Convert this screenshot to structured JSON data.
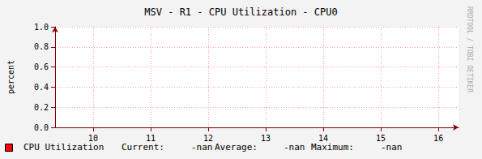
{
  "chart_data": {
    "type": "line",
    "title": "MSV - R1 - CPU Utilization - CPU0",
    "y_label": "percent",
    "watermark": "RRDTOOL / TOBI OETIKER",
    "x": [],
    "series": [
      {
        "name": "CPU Utilization",
        "color": "#ff0000",
        "values": []
      }
    ],
    "legend_stats": [
      {
        "label": "Current:",
        "value": "-nan"
      },
      {
        "label": "Average:",
        "value": "-nan"
      },
      {
        "label": "Maximum:",
        "value": "-nan"
      }
    ],
    "xlim": [
      9.34,
      16.35
    ],
    "xticks": [
      10,
      11,
      12,
      13,
      14,
      15,
      16
    ],
    "ylim": [
      0,
      1
    ],
    "yticks": [
      {
        "value": 0,
        "label": "0.0"
      },
      0.2,
      0.4,
      0.6,
      0.8,
      {
        "value": 1,
        "label": "1.0"
      }
    ],
    "grid": true,
    "legend": "bottom"
  }
}
